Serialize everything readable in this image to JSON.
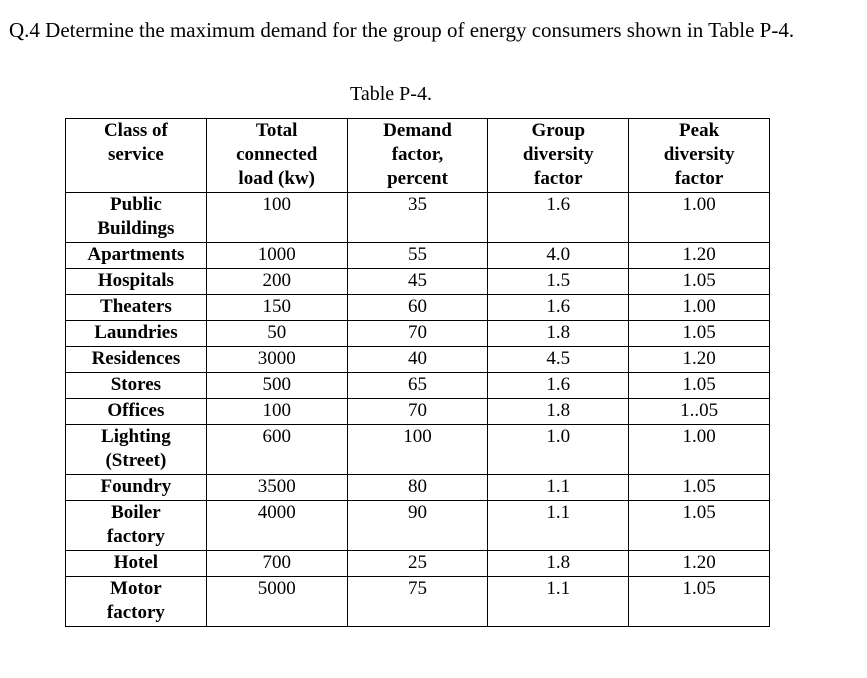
{
  "question": "Q.4 Determine the maximum demand for the group of energy consumers shown in Table P-4.",
  "caption": "Table P-4.",
  "table": {
    "headers": [
      "Class of\nservice",
      "Total\nconnected\nload (kw)",
      "Demand\nfactor,\npercent",
      "Group\ndiversity\nfactor",
      "Peak\ndiversity\nfactor"
    ],
    "rows": [
      {
        "label": "Public\nBuildings",
        "load": "100",
        "demand": "35",
        "group": "1.6",
        "peak": "1.00"
      },
      {
        "label": "Apartments",
        "load": "1000",
        "demand": "55",
        "group": "4.0",
        "peak": "1.20"
      },
      {
        "label": "Hospitals",
        "load": "200",
        "demand": "45",
        "group": "1.5",
        "peak": "1.05"
      },
      {
        "label": "Theaters",
        "load": "150",
        "demand": "60",
        "group": "1.6",
        "peak": "1.00"
      },
      {
        "label": "Laundries",
        "load": "50",
        "demand": "70",
        "group": "1.8",
        "peak": "1.05"
      },
      {
        "label": "Residences",
        "load": "3000",
        "demand": "40",
        "group": "4.5",
        "peak": "1.20"
      },
      {
        "label": "Stores",
        "load": "500",
        "demand": "65",
        "group": "1.6",
        "peak": "1.05"
      },
      {
        "label": "Offices",
        "load": "100",
        "demand": "70",
        "group": "1.8",
        "peak": "1..05"
      },
      {
        "label": "Lighting\n(Street)",
        "load": "600",
        "demand": "100",
        "group": "1.0",
        "peak": "1.00"
      },
      {
        "label": "Foundry",
        "load": "3500",
        "demand": "80",
        "group": "1.1",
        "peak": "1.05"
      },
      {
        "label": "Boiler\nfactory",
        "load": "4000",
        "demand": "90",
        "group": "1.1",
        "peak": "1.05"
      },
      {
        "label": "Hotel",
        "load": "700",
        "demand": "25",
        "group": "1.8",
        "peak": "1.20"
      },
      {
        "label": "Motor\nfactory",
        "load": "5000",
        "demand": "75",
        "group": "1.1",
        "peak": "1.05"
      }
    ]
  },
  "colors": {
    "text": "#000000",
    "background": "#ffffff",
    "border": "#000000"
  }
}
